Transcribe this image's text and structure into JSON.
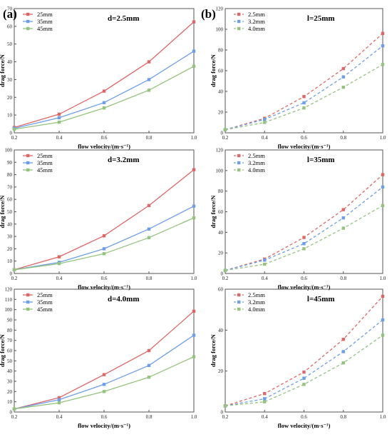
{
  "panel_labels": {
    "a": "(a)",
    "b": "(b)"
  },
  "colors": {
    "red": "#e06666",
    "blue": "#6d9eeb",
    "green": "#93c47d"
  },
  "chart_data": [
    {
      "type": "line",
      "style": "solid",
      "column": "left",
      "title": "d=2.5mm",
      "xlabel": "flow velocity/(m·s⁻¹)",
      "ylabel": "drag force/N",
      "xlim": [
        0.2,
        1.0
      ],
      "ylim": [
        0,
        70
      ],
      "xticks": [
        0.2,
        0.4,
        0.6,
        0.8,
        1.0
      ],
      "yticks": [
        0,
        10,
        20,
        30,
        40,
        50,
        60,
        70
      ],
      "grid": false,
      "legend_position": "top-left",
      "x": [
        0.2,
        0.4,
        0.6,
        0.8,
        1.0
      ],
      "series": [
        {
          "name": "25mm",
          "color": "#e06666",
          "values": [
            3,
            10.5,
            23.5,
            40,
            62.5
          ]
        },
        {
          "name": "35mm",
          "color": "#6d9eeb",
          "values": [
            2.5,
            8.5,
            17,
            30,
            46
          ]
        },
        {
          "name": "45mm",
          "color": "#93c47d",
          "values": [
            2,
            6,
            14,
            24,
            37.5
          ]
        }
      ]
    },
    {
      "type": "line",
      "style": "dashed",
      "column": "right",
      "title": "l=25mm",
      "xlabel": "flow velocity/(m·s⁻¹)",
      "ylabel": "drag force/N",
      "xlim": [
        0.2,
        1.0
      ],
      "ylim": [
        0,
        120
      ],
      "xticks": [
        0.2,
        0.4,
        0.6,
        0.8,
        1.0
      ],
      "yticks": [
        0,
        20,
        40,
        60,
        80,
        100,
        120
      ],
      "grid": false,
      "legend_position": "top-left",
      "x": [
        0.2,
        0.4,
        0.6,
        0.8,
        1.0
      ],
      "series": [
        {
          "name": "2.5mm",
          "color": "#e06666",
          "values": [
            3,
            14,
            35,
            62,
            96
          ]
        },
        {
          "name": "3.2mm",
          "color": "#6d9eeb",
          "values": [
            3,
            13,
            29,
            54,
            84
          ]
        },
        {
          "name": "4.0mm",
          "color": "#93c47d",
          "values": [
            3,
            10,
            24,
            44,
            66
          ]
        }
      ]
    },
    {
      "type": "line",
      "style": "solid",
      "column": "left",
      "title": "d=3.2mm",
      "xlabel": "flow velocity/(m·s⁻¹)",
      "ylabel": "drag force/N",
      "xlim": [
        0.2,
        1.0
      ],
      "ylim": [
        0,
        100
      ],
      "xticks": [
        0.2,
        0.4,
        0.6,
        0.8,
        1.0
      ],
      "yticks": [
        0,
        10,
        20,
        30,
        40,
        50,
        60,
        70,
        80,
        90,
        100
      ],
      "grid": false,
      "legend_position": "top-left",
      "x": [
        0.2,
        0.4,
        0.6,
        0.8,
        1.0
      ],
      "series": [
        {
          "name": "25mm",
          "color": "#e06666",
          "values": [
            3,
            13.5,
            30.5,
            55,
            84
          ]
        },
        {
          "name": "35mm",
          "color": "#6d9eeb",
          "values": [
            3,
            9,
            20,
            36,
            54.5
          ]
        },
        {
          "name": "45mm",
          "color": "#93c47d",
          "values": [
            3,
            8,
            16,
            29,
            45
          ]
        }
      ]
    },
    {
      "type": "line",
      "style": "dashed",
      "column": "right",
      "title": "l=35mm",
      "xlabel": "flow velocity/(m·s⁻¹)",
      "ylabel": "drag force/N",
      "xlim": [
        0.2,
        1.0
      ],
      "ylim": [
        0,
        120
      ],
      "xticks": [
        0.2,
        0.4,
        0.6,
        0.8,
        1.0
      ],
      "yticks": [
        0,
        20,
        40,
        60,
        80,
        100,
        120
      ],
      "grid": false,
      "legend_position": "top-left",
      "x": [
        0.2,
        0.4,
        0.6,
        0.8,
        1.0
      ],
      "series": [
        {
          "name": "2.5mm",
          "color": "#e06666",
          "values": [
            3,
            14,
            35,
            62,
            96
          ]
        },
        {
          "name": "3.2mm",
          "color": "#6d9eeb",
          "values": [
            3,
            13,
            29,
            54,
            84
          ]
        },
        {
          "name": "4.0mm",
          "color": "#93c47d",
          "values": [
            3,
            9,
            24,
            44,
            66
          ]
        }
      ]
    },
    {
      "type": "line",
      "style": "solid",
      "column": "left",
      "title": "d=4.0mm",
      "xlabel": "flow velocity/(m·s⁻¹)",
      "ylabel": "drag force/N",
      "xlim": [
        0.2,
        1.0
      ],
      "ylim": [
        0,
        120
      ],
      "xticks": [
        0.2,
        0.4,
        0.6,
        0.8,
        1.0
      ],
      "yticks": [
        0,
        10,
        20,
        30,
        40,
        50,
        60,
        70,
        80,
        90,
        100,
        110,
        120
      ],
      "grid": false,
      "legend_position": "top-left",
      "x": [
        0.2,
        0.4,
        0.6,
        0.8,
        1.0
      ],
      "series": [
        {
          "name": "25mm",
          "color": "#e06666",
          "values": [
            3,
            14,
            36.5,
            60,
            98.5
          ]
        },
        {
          "name": "35mm",
          "color": "#6d9eeb",
          "values": [
            3,
            12,
            27,
            45.5,
            75
          ]
        },
        {
          "name": "45mm",
          "color": "#93c47d",
          "values": [
            3,
            9,
            20,
            34,
            54
          ]
        }
      ]
    },
    {
      "type": "line",
      "style": "dashed",
      "column": "right",
      "title": "l=45mm",
      "xlabel": "flow velocity/(m·s⁻¹)",
      "ylabel": "drag force/N",
      "xlim": [
        0.2,
        1.0
      ],
      "ylim": [
        0,
        60
      ],
      "xticks": [
        0.2,
        0.4,
        0.6,
        0.8,
        1.0
      ],
      "yticks": [
        0,
        20,
        40,
        60
      ],
      "grid": false,
      "legend_position": "top-left",
      "x": [
        0.2,
        0.4,
        0.6,
        0.8,
        1.0
      ],
      "series": [
        {
          "name": "2.5mm",
          "color": "#e06666",
          "values": [
            3,
            9,
            19.5,
            35.5,
            56.5
          ]
        },
        {
          "name": "3.2mm",
          "color": "#6d9eeb",
          "values": [
            3,
            6.5,
            16.5,
            29.5,
            45
          ]
        },
        {
          "name": "4.0mm",
          "color": "#93c47d",
          "values": [
            3,
            5,
            13.5,
            24,
            37.5
          ]
        }
      ]
    }
  ]
}
